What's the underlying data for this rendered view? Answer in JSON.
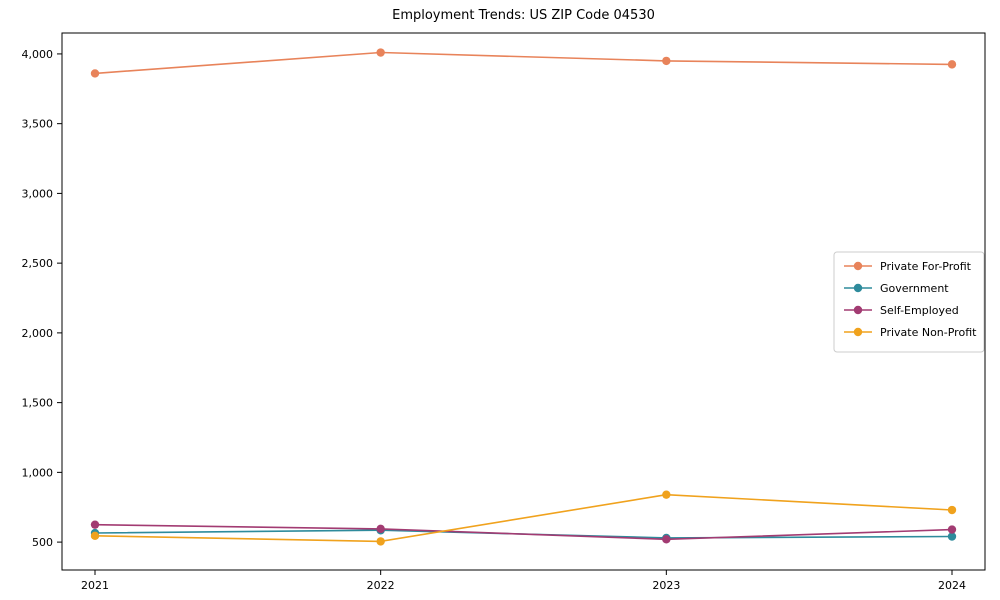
{
  "title": "Employment Trends: US ZIP Code 04530",
  "chart_data": {
    "type": "line",
    "x": [
      "2021",
      "2022",
      "2023",
      "2024"
    ],
    "series": [
      {
        "name": "Private For-Profit",
        "color": "#E8835A",
        "values": [
          3860,
          4010,
          3950,
          3925
        ]
      },
      {
        "name": "Government",
        "color": "#2E8B9C",
        "values": [
          565,
          585,
          530,
          540
        ]
      },
      {
        "name": "Self-Employed",
        "color": "#A23B72",
        "values": [
          625,
          595,
          520,
          590
        ]
      },
      {
        "name": "Private Non-Profit",
        "color": "#F0A21D",
        "values": [
          545,
          505,
          840,
          730
        ]
      }
    ],
    "xlabel": "",
    "ylabel": "",
    "ylim": [
      300,
      4150
    ],
    "yticks": [
      500,
      1000,
      1500,
      2000,
      2500,
      3000,
      3500,
      4000
    ],
    "grid": false,
    "marker": "o",
    "legend_position": "center right",
    "frame_color": "#000000",
    "legend_border_color": "#cccccc",
    "text_color": "#000000"
  }
}
